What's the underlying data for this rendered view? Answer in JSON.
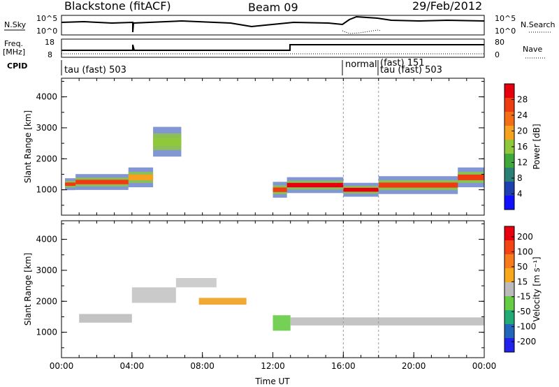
{
  "header": {
    "station": "Blackstone (fitACF)",
    "beam": "Beam 09",
    "date": "29/Feb/2012"
  },
  "top_panels": {
    "nsky_label": "N.Sky",
    "nsky_ticks": [
      "10^5",
      "10^0"
    ],
    "nsearch_label": "N.Search",
    "nsearch_ticks": [
      "10^5",
      "10^0"
    ],
    "freq_label_1": "Freq.",
    "freq_label_2": "[MHz]",
    "freq_ticks": [
      "18",
      "8"
    ],
    "nave_label": "Nave",
    "nave_ticks": [
      "80",
      "0"
    ],
    "cpid_label": "CPID",
    "cpid_segments": [
      "tau (fast) 503",
      "normal",
      "(fast) 151",
      "tau (fast) 503"
    ]
  },
  "chart_data": [
    {
      "type": "heatmap",
      "title": "",
      "ylabel": "Slant Range [km]",
      "xlabel": "",
      "yticks": [
        "1000",
        "2000",
        "3000",
        "4000"
      ],
      "ylim": [
        180,
        4600
      ],
      "x_hours": [
        0,
        24
      ],
      "colorbar_label": "Power [dB]",
      "colorbar_ticks": [
        "4",
        "8",
        "12",
        "16",
        "20",
        "24",
        "28"
      ],
      "colorbar_colors": [
        "#1010ff",
        "#1e3fb0",
        "#2c7f74",
        "#3ea83a",
        "#8fc83a",
        "#f6a21e",
        "#f36e14",
        "#ee3b10",
        "#e6000e"
      ],
      "echo_bands": [
        {
          "t0": 0.2,
          "t1": 0.8,
          "center": 1180,
          "width": 120,
          "level": 0.85
        },
        {
          "t0": 0.8,
          "t1": 3.8,
          "center": 1250,
          "width": 160,
          "level": 0.9
        },
        {
          "t0": 3.8,
          "t1": 5.2,
          "center": 1400,
          "width": 200,
          "level": 0.65
        },
        {
          "t0": 5.2,
          "t1": 6.8,
          "center": 2550,
          "width": 300,
          "level": 0.45
        },
        {
          "t0": 12.0,
          "t1": 12.8,
          "center": 1000,
          "width": 160,
          "level": 0.9
        },
        {
          "t0": 12.8,
          "t1": 16.0,
          "center": 1150,
          "width": 160,
          "level": 0.95
        },
        {
          "t0": 16.0,
          "t1": 18.0,
          "center": 1000,
          "width": 140,
          "level": 0.95
        },
        {
          "t0": 18.0,
          "t1": 22.5,
          "center": 1150,
          "width": 180,
          "level": 0.9
        },
        {
          "t0": 22.5,
          "t1": 24.0,
          "center": 1400,
          "width": 200,
          "level": 0.85
        }
      ]
    },
    {
      "type": "heatmap",
      "title": "",
      "ylabel": "Slant Range [km]",
      "xlabel": "Time UT",
      "yticks": [
        "1000",
        "2000",
        "3000",
        "4000"
      ],
      "ylim": [
        180,
        4600
      ],
      "xticks": [
        "00:00",
        "04:00",
        "08:00",
        "12:00",
        "16:00",
        "20:00",
        "00:00"
      ],
      "x_hours": [
        0,
        24
      ],
      "colorbar_label": "Velocity [m s⁻¹]",
      "colorbar_ticks": [
        "200",
        "100",
        "50",
        "15",
        "-15",
        "-50",
        "-100",
        "-200"
      ],
      "colorbar_colors": [
        "#2222ee",
        "#2266bb",
        "#22aa77",
        "#66cc44",
        "#bbbbbb",
        "#f7a81c",
        "#f77a1c",
        "#f54414",
        "#e8000e"
      ],
      "echo_bands": [
        {
          "t0": 1.0,
          "t1": 4.0,
          "center": 1450,
          "width": 280,
          "color": "#bdbdbd"
        },
        {
          "t0": 4.0,
          "t1": 6.5,
          "center": 2200,
          "width": 500,
          "color": "#c4c4c4"
        },
        {
          "t0": 6.5,
          "t1": 8.8,
          "center": 2600,
          "width": 300,
          "color": "#c8c8c8"
        },
        {
          "t0": 7.8,
          "t1": 10.5,
          "center": 2000,
          "width": 220,
          "color": "#f0a020"
        },
        {
          "t0": 12.0,
          "t1": 13.0,
          "center": 1300,
          "width": 500,
          "color": "#66cc44"
        },
        {
          "t0": 13.0,
          "t1": 24.0,
          "center": 1350,
          "width": 260,
          "color": "#bebebe"
        }
      ]
    }
  ]
}
